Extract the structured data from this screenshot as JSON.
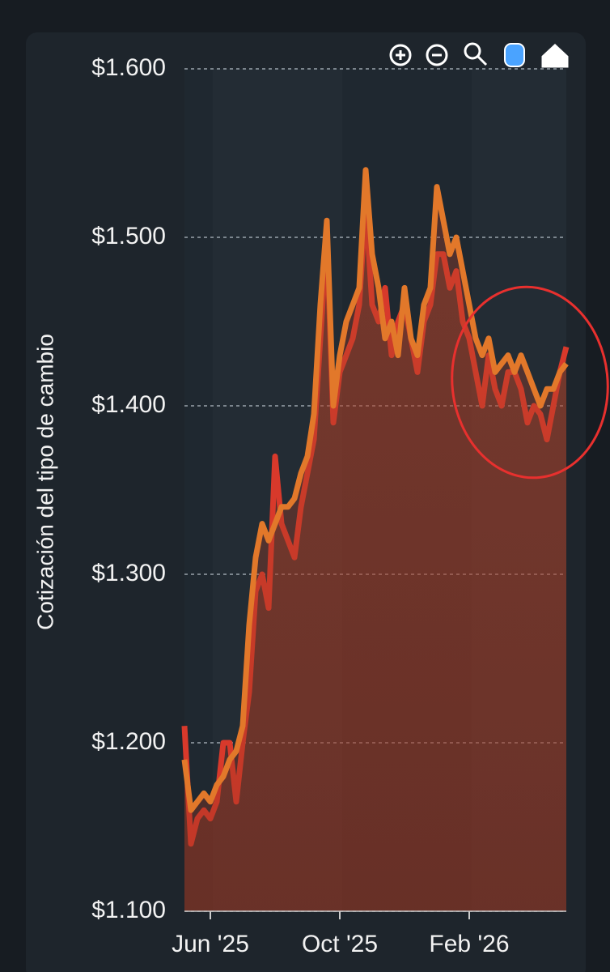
{
  "chart_data": {
    "type": "line",
    "y_label": "Cotización del tipo de cambio",
    "categories": [
      null,
      null,
      null,
      null,
      "Jun '25",
      null,
      null,
      null,
      null,
      null,
      null,
      null,
      null,
      null,
      null,
      null,
      null,
      null,
      null,
      null,
      null,
      null,
      null,
      null,
      "Oct '25",
      null,
      null,
      null,
      null,
      null,
      null,
      null,
      null,
      null,
      null,
      null,
      null,
      null,
      null,
      null,
      null,
      null,
      null,
      null,
      "Feb '26",
      null,
      null,
      null,
      null,
      null,
      null,
      null,
      null,
      null,
      null,
      null,
      null,
      null,
      null,
      null
    ],
    "series": [
      {
        "color": "#d8392b",
        "values": [
          1210,
          1140,
          1155,
          1160,
          1155,
          1165,
          1200,
          1200,
          1165,
          1200,
          1230,
          1290,
          1300,
          1280,
          1370,
          1330,
          1320,
          1310,
          1340,
          1360,
          1380,
          1440,
          1500,
          1390,
          1420,
          1430,
          1440,
          1460,
          1520,
          1460,
          1450,
          1470,
          1430,
          1450,
          1460,
          1440,
          1420,
          1450,
          1460,
          1490,
          1490,
          1470,
          1480,
          1450,
          1440,
          1420,
          1400,
          1430,
          1410,
          1400,
          1420,
          1420,
          1410,
          1390,
          1400,
          1395,
          1380,
          1400,
          1420,
          1435
        ]
      },
      {
        "color": "#e2782a",
        "values": [
          1190,
          1160,
          1165,
          1170,
          1165,
          1175,
          1180,
          1190,
          1195,
          1210,
          1270,
          1310,
          1330,
          1320,
          1330,
          1340,
          1340,
          1345,
          1360,
          1370,
          1395,
          1460,
          1510,
          1400,
          1430,
          1450,
          1460,
          1470,
          1540,
          1490,
          1470,
          1440,
          1450,
          1430,
          1470,
          1440,
          1430,
          1460,
          1470,
          1530,
          1510,
          1490,
          1500,
          1480,
          1460,
          1440,
          1430,
          1440,
          1420,
          1425,
          1430,
          1420,
          1430,
          1420,
          1410,
          1400,
          1410,
          1410,
          1420,
          1425
        ]
      }
    ],
    "ylim": [
      1100,
      1600
    ],
    "yticks": [
      {
        "value": 1100,
        "label": "$1.100"
      },
      {
        "value": 1200,
        "label": "$1.200"
      },
      {
        "value": 1300,
        "label": "$1.300"
      },
      {
        "value": 1400,
        "label": "$1.400"
      },
      {
        "value": 1500,
        "label": "$1.500"
      },
      {
        "value": 1600,
        "label": "$1.600"
      }
    ],
    "grid": true,
    "area": true
  }
}
